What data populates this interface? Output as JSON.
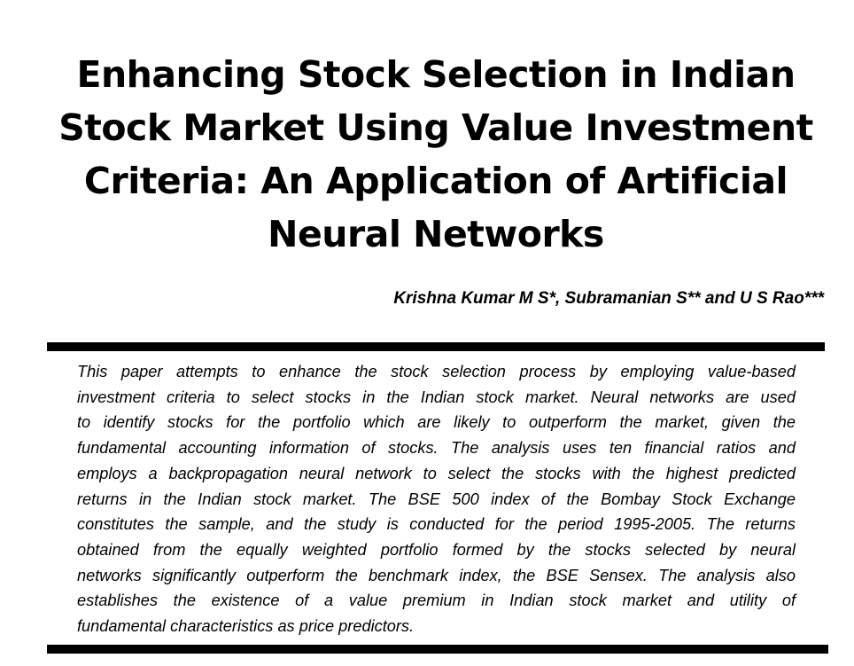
{
  "title_lines": [
    "Enhancing Stock Selection in Indian",
    "Stock Market Using Value Investment",
    "Criteria: An Application of Artificial",
    "Neural Networks"
  ],
  "authors": "Krishna Kumar M S*, Subramanian S** and U S Rao***",
  "abstract_lines": [
    "This paper attempts to enhance the stock selection process by employing value-based",
    "investment criteria to select stocks in the Indian stock market. Neural networks are used",
    "to identify stocks for the portfolio which are likely to outperform the market, given the",
    "fundamental accounting information of stocks. The analysis uses ten financial ratios and",
    "employs a backpropagation neural network to select the stocks with the highest predicted",
    "returns in the Indian stock market. The BSE 500 index of the Bombay Stock Exchange",
    "constitutes the sample, and the study is conducted for the period 1995-2005. The returns",
    "obtained from the equally weighted portfolio formed by the stocks selected by neural",
    "networks significantly outperform the benchmark index, the BSE Sensex. The analysis also",
    "establishes the existence of a value premium in Indian stock market and utility of",
    "fundamental characteristics as price predictors."
  ]
}
